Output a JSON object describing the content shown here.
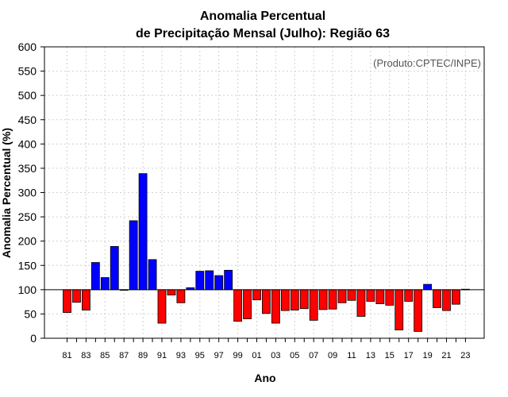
{
  "chart_data": {
    "type": "bar",
    "title": [
      "Anomalia Percentual",
      "de Precipitação Mensal (Julho): Região 63"
    ],
    "xlabel": "Ano",
    "ylabel": "Anomalia Percentual (%)",
    "credit": "(Produto:CPTEC/INPE)",
    "ylim": [
      0,
      600
    ],
    "yticks": [
      0,
      50,
      100,
      150,
      200,
      250,
      300,
      350,
      400,
      450,
      500,
      550,
      600
    ],
    "baseline": 100,
    "grid": true,
    "colors": {
      "above": "#0000ff",
      "below": "#ff0000"
    },
    "categories": [
      "81",
      "82",
      "83",
      "84",
      "85",
      "86",
      "87",
      "88",
      "89",
      "90",
      "91",
      "92",
      "93",
      "94",
      "95",
      "96",
      "97",
      "98",
      "99",
      "00",
      "01",
      "02",
      "03",
      "04",
      "05",
      "06",
      "07",
      "08",
      "09",
      "10",
      "11",
      "12",
      "13",
      "14",
      "15",
      "16",
      "17",
      "18",
      "19",
      "20",
      "21",
      "22",
      "23"
    ],
    "tick_labels": [
      "81",
      "83",
      "85",
      "87",
      "89",
      "91",
      "93",
      "95",
      "97",
      "99",
      "01",
      "03",
      "05",
      "07",
      "09",
      "11",
      "13",
      "15",
      "17",
      "19",
      "21",
      "23"
    ],
    "values": [
      53,
      74,
      58,
      156,
      125,
      189,
      100,
      242,
      339,
      162,
      31,
      89,
      73,
      104,
      138,
      139,
      129,
      140,
      35,
      40,
      79,
      51,
      31,
      57,
      58,
      61,
      37,
      59,
      60,
      73,
      78,
      45,
      76,
      71,
      68,
      17,
      76,
      14,
      111,
      63,
      57,
      70,
      101
    ]
  }
}
